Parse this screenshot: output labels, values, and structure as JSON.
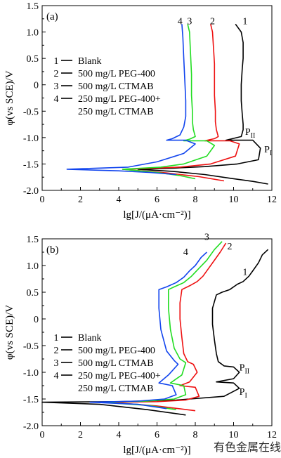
{
  "figure": {
    "watermark": "有色金属在线"
  },
  "chart_data": [
    {
      "type": "line",
      "panel_label": "(a)",
      "xlabel": "lg[J/(μA·cm⁻²)]",
      "ylabel": "φ(vs SCE)/V",
      "xlim": [
        0,
        12
      ],
      "ylim": [
        -2.0,
        1.5
      ],
      "x_ticks": [
        "0",
        "2",
        "4",
        "6",
        "8",
        "10",
        "12"
      ],
      "y_ticks": [
        "-2.0",
        "-1.5",
        "-1.0",
        "-0.5",
        "0",
        "0.5",
        "1.0",
        "1.5"
      ],
      "grid": false,
      "legend_position": "left-middle",
      "legend": [
        {
          "num": "1",
          "text": "Blank"
        },
        {
          "num": "2",
          "text": "500 mg/L PEG-400"
        },
        {
          "num": "3",
          "text": "500 mg/L CTMAB"
        },
        {
          "num": "4",
          "text": "250 mg/L PEG-400+"
        },
        {
          "num": "",
          "text": "250 mg/L CTMAB"
        }
      ],
      "annotations": [
        {
          "text": "P",
          "sub": "II",
          "x": 10.6,
          "y": -0.95
        },
        {
          "text": "P",
          "sub": "I",
          "x": 11.6,
          "y": -1.28
        }
      ],
      "series": [
        {
          "name": "1",
          "color": "#000000",
          "label_at": [
            10.6,
            1.15
          ],
          "x": [
            10.1,
            10.4,
            10.5,
            10.5,
            10.45,
            10.4,
            10.4,
            10.45,
            10.5,
            10.5,
            10.4,
            9.6,
            11.0,
            11.4,
            11.3,
            10.2,
            8.5,
            6.8,
            5.0,
            6.8,
            8.5,
            9.8,
            11.0,
            11.8
          ],
          "y": [
            1.15,
            1.0,
            0.8,
            0.5,
            0.3,
            0.0,
            -0.3,
            -0.55,
            -0.75,
            -0.85,
            -0.98,
            -1.05,
            -1.05,
            -1.2,
            -1.42,
            -1.5,
            -1.55,
            -1.58,
            -1.6,
            -1.64,
            -1.7,
            -1.77,
            -1.83,
            -1.88
          ]
        },
        {
          "name": "2",
          "color": "#ee1111",
          "label_at": [
            8.9,
            1.15
          ],
          "x": [
            8.8,
            8.9,
            8.95,
            9.0,
            9.0,
            9.0,
            9.05,
            9.05,
            9.1,
            9.2,
            9.0,
            8.5,
            9.8,
            10.3,
            10.1,
            8.8,
            7.2,
            5.8,
            4.2,
            6.5,
            8.2,
            9.5
          ],
          "y": [
            1.15,
            1.0,
            0.7,
            0.4,
            0.1,
            -0.2,
            -0.5,
            -0.7,
            -0.85,
            -0.98,
            -1.02,
            -1.06,
            -1.06,
            -1.12,
            -1.35,
            -1.5,
            -1.56,
            -1.58,
            -1.6,
            -1.67,
            -1.74,
            -1.82
          ]
        },
        {
          "name": "3",
          "color": "#22dd22",
          "label_at": [
            7.7,
            1.15
          ],
          "x": [
            7.6,
            7.7,
            7.75,
            7.8,
            7.8,
            7.85,
            7.85,
            7.9,
            8.0,
            7.7,
            7.4,
            8.6,
            9.0,
            8.6,
            7.4,
            6.2,
            4.2,
            6.0,
            7.2,
            8.0
          ],
          "y": [
            1.15,
            1.0,
            0.6,
            0.2,
            -0.2,
            -0.5,
            -0.7,
            -0.85,
            -0.98,
            -1.03,
            -1.06,
            -1.06,
            -1.15,
            -1.35,
            -1.5,
            -1.56,
            -1.6,
            -1.66,
            -1.72,
            -1.78
          ]
        },
        {
          "name": "4",
          "color": "#1144ee",
          "label_at": [
            7.2,
            1.15
          ],
          "x": [
            7.3,
            7.35,
            7.4,
            7.45,
            7.5,
            7.5,
            7.4,
            7.2,
            6.8,
            6.5,
            7.5,
            8.0,
            7.4,
            6.0,
            4.5,
            1.3,
            4.0,
            5.6,
            7.0
          ],
          "y": [
            1.15,
            0.9,
            0.5,
            0.1,
            -0.3,
            -0.6,
            -0.8,
            -0.95,
            -1.02,
            -1.05,
            -1.05,
            -1.12,
            -1.3,
            -1.46,
            -1.56,
            -1.6,
            -1.63,
            -1.66,
            -1.7
          ]
        }
      ]
    },
    {
      "type": "line",
      "panel_label": "(b)",
      "xlabel": "lg[J/(μA·cm⁻²)]",
      "ylabel": "φ(vs SCE)/V",
      "xlim": [
        0,
        12
      ],
      "ylim": [
        -2.0,
        1.5
      ],
      "x_ticks": [
        "0",
        "2",
        "4",
        "6",
        "8",
        "10",
        "12"
      ],
      "y_ticks": [
        "-2.0",
        "-1.5",
        "-1.0",
        "-0.5",
        "0",
        "0.5",
        "1.0",
        "1.5"
      ],
      "grid": false,
      "legend_position": "left-bottom",
      "legend": [
        {
          "num": "1",
          "text": "Blank"
        },
        {
          "num": "2",
          "text": "500 mg/L PEG-400"
        },
        {
          "num": "3",
          "text": "500 mg/L CTMAB"
        },
        {
          "num": "4",
          "text": "250 mg/L PEG-400+"
        },
        {
          "num": "",
          "text": "250 mg/L CTMAB"
        }
      ],
      "annotations": [
        {
          "text": "P",
          "sub": "II",
          "x": 10.3,
          "y": -0.97
        },
        {
          "text": "P",
          "sub": "I",
          "x": 10.3,
          "y": -1.42
        }
      ],
      "series": [
        {
          "name": "1",
          "color": "#000000",
          "label_at": [
            10.6,
            0.82
          ],
          "x": [
            11.8,
            11.5,
            11.3,
            11.0,
            10.8,
            10.5,
            10.2,
            9.8,
            9.4,
            9.1,
            8.9,
            8.9,
            9.0,
            9.1,
            9.2,
            9.5,
            10.0,
            10.3,
            10.0,
            9.1,
            10.0,
            10.3,
            9.5,
            7.0,
            4.0,
            0.0,
            3.0,
            5.5,
            7.5
          ],
          "y": [
            1.3,
            1.2,
            1.05,
            0.9,
            0.8,
            0.7,
            0.65,
            0.55,
            0.5,
            0.45,
            0.2,
            -0.1,
            -0.4,
            -0.65,
            -0.8,
            -0.88,
            -0.9,
            -1.0,
            -1.12,
            -1.18,
            -1.2,
            -1.3,
            -1.45,
            -1.52,
            -1.55,
            -1.56,
            -1.6,
            -1.7,
            -1.8
          ]
        },
        {
          "name": "2",
          "color": "#ee1111",
          "label_at": [
            9.8,
            1.3
          ],
          "x": [
            9.6,
            9.3,
            9.0,
            8.7,
            8.4,
            8.1,
            7.7,
            7.3,
            7.2,
            7.2,
            7.3,
            7.4,
            7.6,
            7.9,
            8.1,
            7.7,
            7.2,
            8.0,
            8.2,
            7.5,
            6.0,
            3.5,
            6.0,
            8.0
          ],
          "y": [
            1.42,
            1.25,
            1.1,
            0.95,
            0.8,
            0.7,
            0.62,
            0.55,
            0.3,
            0.0,
            -0.35,
            -0.65,
            -0.8,
            -0.85,
            -1.0,
            -1.18,
            -1.25,
            -1.28,
            -1.45,
            -1.52,
            -1.55,
            -1.56,
            -1.63,
            -1.72
          ]
        },
        {
          "name": "3",
          "color": "#22dd22",
          "label_at": [
            8.6,
            1.48
          ],
          "x": [
            9.4,
            9.0,
            8.6,
            8.2,
            7.8,
            7.4,
            6.9,
            6.6,
            6.6,
            6.7,
            6.9,
            7.2,
            7.5,
            7.3,
            6.7,
            7.4,
            7.5,
            6.9,
            5.5,
            3.0,
            5.5,
            7.0
          ],
          "y": [
            1.45,
            1.3,
            1.1,
            0.95,
            0.8,
            0.68,
            0.6,
            0.55,
            0.2,
            -0.2,
            -0.55,
            -0.75,
            -0.82,
            -1.05,
            -1.2,
            -1.25,
            -1.42,
            -1.5,
            -1.54,
            -1.56,
            -1.62,
            -1.7
          ]
        },
        {
          "name": "4",
          "color": "#1144ee",
          "label_at": [
            7.5,
            1.2
          ],
          "x": [
            8.6,
            8.3,
            8.0,
            7.7,
            7.4,
            7.0,
            6.5,
            6.1,
            6.1,
            6.2,
            6.5,
            6.9,
            7.1,
            6.6,
            6.1,
            6.8,
            7.0,
            6.4,
            5.0,
            2.5,
            5.0,
            6.5
          ],
          "y": [
            1.25,
            1.15,
            1.0,
            0.9,
            0.78,
            0.68,
            0.6,
            0.55,
            0.2,
            -0.2,
            -0.6,
            -0.78,
            -0.85,
            -1.05,
            -1.2,
            -1.25,
            -1.42,
            -1.5,
            -1.54,
            -1.56,
            -1.6,
            -1.68
          ]
        }
      ]
    }
  ]
}
